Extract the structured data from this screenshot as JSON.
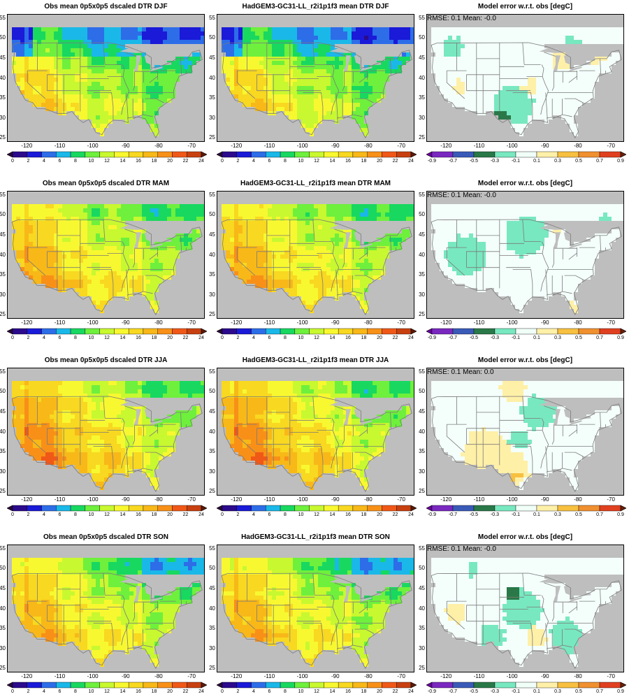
{
  "rows": [
    {
      "season": "DJF",
      "obs_title": "Obs mean 0p5x0p5 dscaled DTR DJF",
      "model_title": "HadGEM3-GC31-LL_r2i1p1f3 mean DTR DJF",
      "err_title": "Model error w.r.t. obs [degC]",
      "stats": "RMSE: 0.1   Mean: -0.0",
      "err_patches": [
        {
          "kind": "cool",
          "lon": -118,
          "lat": 48,
          "r": 3
        },
        {
          "kind": "cool",
          "lon": -82,
          "lat": 48,
          "r": 3
        },
        {
          "kind": "cool",
          "lon": -100,
          "lat": 33,
          "r": 6
        },
        {
          "kind": "strong-cool",
          "lon": -103,
          "lat": 30,
          "r": 2
        },
        {
          "kind": "warm",
          "lon": -74,
          "lat": 46,
          "r": 3
        },
        {
          "kind": "warm",
          "lon": -85,
          "lat": 45,
          "r": 3
        },
        {
          "kind": "warm",
          "lon": -95,
          "lat": 38,
          "r": 2
        },
        {
          "kind": "warm",
          "lon": -116,
          "lat": 38,
          "r": 2
        }
      ]
    },
    {
      "season": "MAM",
      "obs_title": "Obs mean 0p5x0p5 dscaled DTR MAM",
      "model_title": "HadGEM3-GC31-LL_r2i1p1f3 mean DTR MAM",
      "err_title": "Model error w.r.t. obs [degC]",
      "stats": "RMSE: 0.1   Mean: -0.0",
      "err_patches": [
        {
          "kind": "cool",
          "lon": -114,
          "lat": 40,
          "r": 6
        },
        {
          "kind": "cool",
          "lon": -96,
          "lat": 45,
          "r": 6
        },
        {
          "kind": "cool",
          "lon": -72,
          "lat": 48,
          "r": 3
        },
        {
          "kind": "warm",
          "lon": -87,
          "lat": 47,
          "r": 2
        },
        {
          "kind": "warm",
          "lon": -82,
          "lat": 27,
          "r": 2
        }
      ]
    },
    {
      "season": "JJA",
      "obs_title": "Obs mean 0p5x0p5 dscaled DTR JJA",
      "model_title": "HadGEM3-GC31-LL_r2i1p1f3 mean DTR JJA",
      "err_title": "Model error w.r.t. obs [degC]",
      "stats": "RMSE: 0.1   Mean: 0.0",
      "err_patches": [
        {
          "kind": "warm",
          "lon": -100,
          "lat": 51,
          "r": 4
        },
        {
          "kind": "warm",
          "lon": -108,
          "lat": 35,
          "r": 7
        },
        {
          "kind": "warm",
          "lon": -100,
          "lat": 31,
          "r": 5
        },
        {
          "kind": "strong-warm",
          "lon": -100,
          "lat": 29,
          "r": 2
        },
        {
          "kind": "cool",
          "lon": -92,
          "lat": 45,
          "r": 5
        },
        {
          "kind": "cool",
          "lon": -98,
          "lat": 38,
          "r": 3
        }
      ]
    },
    {
      "season": "SON",
      "obs_title": "Obs mean 0p5x0p5 dscaled DTR SON",
      "model_title": "HadGEM3-GC31-LL_r2i1p1f3 mean DTR SON",
      "err_title": "Model error w.r.t. obs [degC]",
      "stats": "RMSE: 0.1   Mean: -0.0",
      "err_patches": [
        {
          "kind": "cool",
          "lon": -97,
          "lat": 40,
          "r": 6
        },
        {
          "kind": "strong-cool",
          "lon": -100,
          "lat": 44,
          "r": 2
        },
        {
          "kind": "cool",
          "lon": -84,
          "lat": 33,
          "r": 5
        },
        {
          "kind": "cool",
          "lon": -106,
          "lat": 33,
          "r": 4
        },
        {
          "kind": "warm",
          "lon": -117,
          "lat": 39,
          "r": 3
        },
        {
          "kind": "warm",
          "lon": -93,
          "lat": 33,
          "r": 3
        },
        {
          "kind": "cool",
          "lon": -112,
          "lat": 50,
          "r": 2
        }
      ]
    }
  ],
  "axes": {
    "lat_ticks": [
      "25",
      "30",
      "35",
      "40",
      "45",
      "50",
      "55"
    ],
    "lon_ticks": [
      "-120",
      "-110",
      "-100",
      "-90",
      "-80",
      "-70"
    ]
  },
  "mean_colorbar": {
    "labels": [
      "0",
      "2",
      "4",
      "6",
      "8",
      "10",
      "12",
      "14",
      "16",
      "18",
      "20",
      "22",
      "24"
    ],
    "colors": [
      "#2a0a3a",
      "#2b0a8c",
      "#1a1ad8",
      "#2d6de8",
      "#1ab8e8",
      "#18d860",
      "#6ef03c",
      "#c8f830",
      "#f8f830",
      "#f8d820",
      "#f8b818",
      "#f89018",
      "#f05818",
      "#c84010",
      "#5a1a08"
    ]
  },
  "error_colorbar": {
    "labels": [
      "-0.9",
      "-0.7",
      "-0.5",
      "-0.3",
      "-0.1",
      "0.1",
      "0.3",
      "0.5",
      "0.7",
      "0.9"
    ],
    "colors": [
      "#6a00a0",
      "#7a28c0",
      "#3a5ab8",
      "#2a7848",
      "#78e8c0",
      "#f0fff8",
      "#fff0a8",
      "#f8c040",
      "#f09030",
      "#e04020",
      "#6a2008"
    ]
  },
  "colors": {
    "ocean": "#bebebe",
    "border": "#7a7a7a",
    "error_bg": "#f4fffb"
  }
}
